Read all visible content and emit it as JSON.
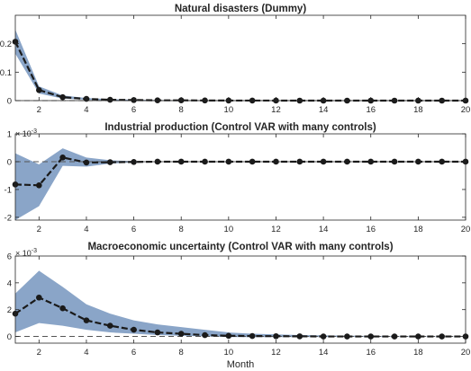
{
  "chart_data": [
    {
      "type": "line",
      "title": "Natural disasters (Dummy)",
      "xlabel": "",
      "x": [
        1,
        2,
        3,
        4,
        5,
        6,
        7,
        8,
        9,
        10,
        11,
        12,
        13,
        14,
        15,
        16,
        17,
        18,
        19,
        20
      ],
      "xlim": [
        1,
        20
      ],
      "ylim": [
        0,
        0.3
      ],
      "yticks": [
        0,
        0.1,
        0.2
      ],
      "ytick_labels": [
        "0",
        "0.1",
        "0.2"
      ],
      "exponent_label": "",
      "series": [
        {
          "values": [
            0.207,
            0.037,
            0.012,
            0.006,
            0.003,
            0.002,
            0.001,
            0.001,
            0.0005,
            0.0003,
            0.0002,
            0.0001,
            0,
            0,
            0,
            0,
            0,
            0,
            0,
            0
          ]
        }
      ],
      "band_upper": [
        0.25,
        0.05,
        0.018,
        0.009,
        0.005,
        0.003,
        0.002,
        0.0015,
        0.001,
        0.0007,
        0.0005,
        0.0003,
        0.0002,
        0.0001,
        0.0001,
        0,
        0,
        0,
        0,
        0
      ],
      "band_lower": [
        0.165,
        0.025,
        0.007,
        0.003,
        0.001,
        0.0005,
        0.0003,
        0.0002,
        0.0001,
        0,
        0,
        0,
        0,
        0,
        0,
        0,
        0,
        0,
        0,
        0
      ],
      "grid": false
    },
    {
      "type": "line",
      "title": "Industrial production (Control VAR with many controls)",
      "xlabel": "",
      "x": [
        1,
        2,
        3,
        4,
        5,
        6,
        7,
        8,
        9,
        10,
        11,
        12,
        13,
        14,
        15,
        16,
        17,
        18,
        19,
        20
      ],
      "xlim": [
        1,
        20
      ],
      "ylim": [
        -0.0021,
        0.001
      ],
      "yticks": [
        -0.002,
        -0.001,
        0,
        0.001
      ],
      "ytick_labels": [
        "-2",
        "-1",
        "0",
        "1"
      ],
      "exponent_label": "× 10",
      "exponent_power": "-3",
      "series": [
        {
          "values": [
            -0.00082,
            -0.00085,
            0.00015,
            -3e-05,
            -2e-05,
            -1e-05,
            0,
            0,
            0,
            0,
            0,
            0,
            0,
            0,
            0,
            0,
            0,
            0,
            0,
            0
          ]
        }
      ],
      "band_upper": [
        0.0003,
        -0.0001,
        0.00048,
        0.00015,
        5e-05,
        2e-05,
        1e-05,
        0,
        0,
        0,
        0,
        0,
        0,
        0,
        0,
        0,
        0,
        0,
        0,
        0
      ],
      "band_lower": [
        -0.0021,
        -0.0016,
        -0.00015,
        -0.00018,
        -7e-05,
        -3e-05,
        -1e-05,
        0,
        0,
        0,
        0,
        0,
        0,
        0,
        0,
        0,
        0,
        0,
        0,
        0
      ],
      "grid": false
    },
    {
      "type": "line",
      "title": "Macroeconomic uncertainty (Control VAR with many controls)",
      "xlabel": "Month",
      "x": [
        1,
        2,
        3,
        4,
        5,
        6,
        7,
        8,
        9,
        10,
        11,
        12,
        13,
        14,
        15,
        16,
        17,
        18,
        19,
        20
      ],
      "xlim": [
        1,
        20
      ],
      "xticks": [
        2,
        4,
        6,
        8,
        10,
        12,
        14,
        16,
        18,
        20
      ],
      "ylim": [
        -0.0005,
        0.006
      ],
      "yticks": [
        0,
        0.002,
        0.004,
        0.006
      ],
      "ytick_labels": [
        "0",
        "2",
        "4",
        "6"
      ],
      "exponent_label": "× 10",
      "exponent_power": "-3",
      "series": [
        {
          "values": [
            0.0017,
            0.0029,
            0.0021,
            0.0012,
            0.0008,
            0.0005,
            0.0003,
            0.0002,
            0.0001,
            5e-05,
            3e-05,
            2e-05,
            1e-05,
            0,
            0,
            0,
            0,
            0,
            0,
            0
          ]
        }
      ],
      "band_upper": [
        0.0032,
        0.0049,
        0.0037,
        0.0024,
        0.0017,
        0.0012,
        0.0009,
        0.0007,
        0.0005,
        0.0003,
        0.0002,
        0.00015,
        0.0001,
        8e-05,
        6e-05,
        4e-05,
        3e-05,
        2e-05,
        1e-05,
        1e-05
      ],
      "band_lower": [
        0.0003,
        0.001,
        0.0008,
        0.0005,
        0.0003,
        0.0002,
        0.0001,
        5e-05,
        0,
        -5e-05,
        -5e-05,
        -5e-05,
        -5e-05,
        -4e-05,
        -3e-05,
        -2e-05,
        -2e-05,
        -1e-05,
        -1e-05,
        -1e-05
      ],
      "grid": false
    }
  ],
  "style": {
    "band_color": "#8aa5c8",
    "line_color": "#1a1a1a",
    "axis_color": "#262626",
    "zero_line_color": "#555555"
  }
}
